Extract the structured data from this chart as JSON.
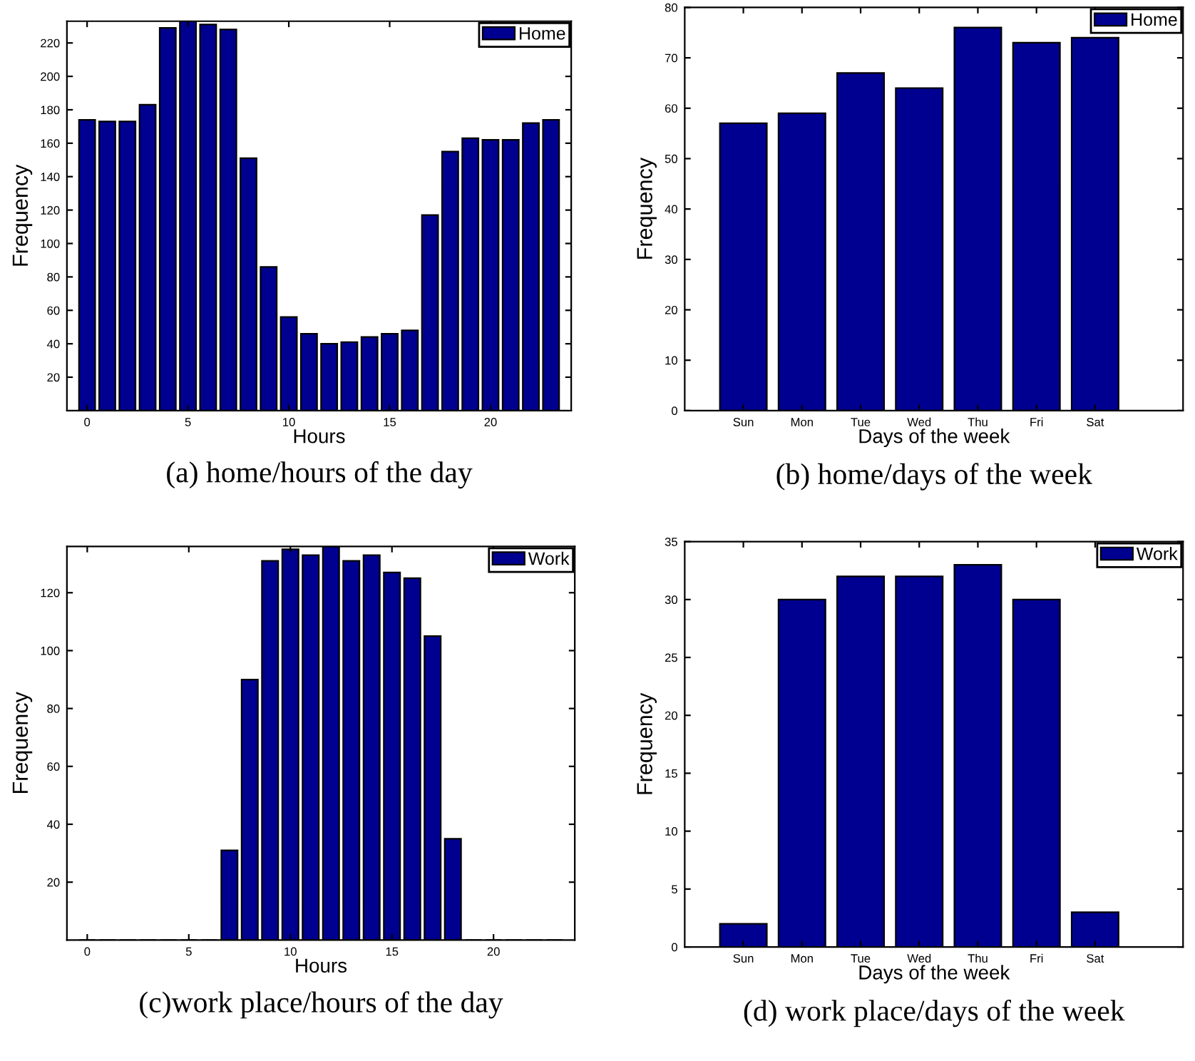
{
  "chart_data": [
    {
      "type": "bar",
      "xlabel": "Hours",
      "ylabel": "Frequency",
      "annotations": [
        "(a) home/hours of the day"
      ],
      "x": [
        0,
        1,
        2,
        3,
        4,
        5,
        6,
        7,
        8,
        9,
        10,
        11,
        12,
        13,
        14,
        15,
        16,
        17,
        18,
        19,
        20,
        21,
        22,
        23
      ],
      "series": [
        {
          "name": "Home",
          "color": "#000090",
          "values": [
            174,
            173,
            173,
            183,
            229,
            233,
            231,
            228,
            151,
            86,
            56,
            46,
            40,
            41,
            44,
            46,
            48,
            117,
            155,
            163,
            162,
            162,
            172,
            174
          ]
        }
      ],
      "xlim": [
        -1,
        24
      ],
      "xticks": [
        0,
        5,
        10,
        15,
        20
      ],
      "ylim": [
        0,
        233
      ],
      "yticks": [
        20,
        40,
        60,
        80,
        100,
        120,
        140,
        160,
        180,
        200,
        220
      ],
      "legend": "top right",
      "grid": false
    },
    {
      "type": "bar",
      "xlabel": "Days of the week",
      "ylabel": "Frequency",
      "annotations": [
        "(b) home/days of the week"
      ],
      "categories": [
        "Sun",
        "Mon",
        "Tue",
        "Wed",
        "Thu",
        "Fri",
        "Sat"
      ],
      "series": [
        {
          "name": "Home",
          "color": "#000090",
          "values": [
            57,
            59,
            67,
            64,
            76,
            73,
            74
          ]
        }
      ],
      "ylim": [
        0,
        80
      ],
      "yticks": [
        0,
        10,
        20,
        30,
        40,
        50,
        60,
        70,
        80
      ],
      "legend": "top right",
      "grid": false
    },
    {
      "type": "bar",
      "xlabel": "Hours",
      "ylabel": "Frequency",
      "annotations": [
        "(c)work place/hours of the day"
      ],
      "x": [
        0,
        1,
        2,
        3,
        4,
        5,
        6,
        7,
        8,
        9,
        10,
        11,
        12,
        13,
        14,
        15,
        16,
        17,
        18,
        19,
        20,
        21,
        22,
        23
      ],
      "series": [
        {
          "name": "Work",
          "color": "#000090",
          "values": [
            0,
            0,
            0,
            0,
            0,
            0,
            0,
            31,
            90,
            131,
            135,
            133,
            136,
            131,
            133,
            127,
            125,
            105,
            35,
            0,
            0,
            0,
            0,
            0
          ]
        }
      ],
      "xlim": [
        -1,
        24
      ],
      "xticks": [
        0,
        5,
        10,
        15,
        20
      ],
      "ylim": [
        0,
        136
      ],
      "yticks": [
        20,
        40,
        60,
        80,
        100,
        120
      ],
      "legend": "top right",
      "grid": false
    },
    {
      "type": "bar",
      "xlabel": "Days of the week",
      "ylabel": "Frequency",
      "annotations": [
        "(d) work place/days of the week"
      ],
      "categories": [
        "Sun",
        "Mon",
        "Tue",
        "Wed",
        "Thu",
        "Fri",
        "Sat"
      ],
      "series": [
        {
          "name": "Work",
          "color": "#000090",
          "values": [
            2,
            30,
            32,
            32,
            33,
            30,
            3
          ]
        }
      ],
      "ylim": [
        0,
        35
      ],
      "yticks": [
        0,
        5,
        10,
        15,
        20,
        25,
        30,
        35
      ],
      "legend": "top right",
      "grid": false
    }
  ]
}
